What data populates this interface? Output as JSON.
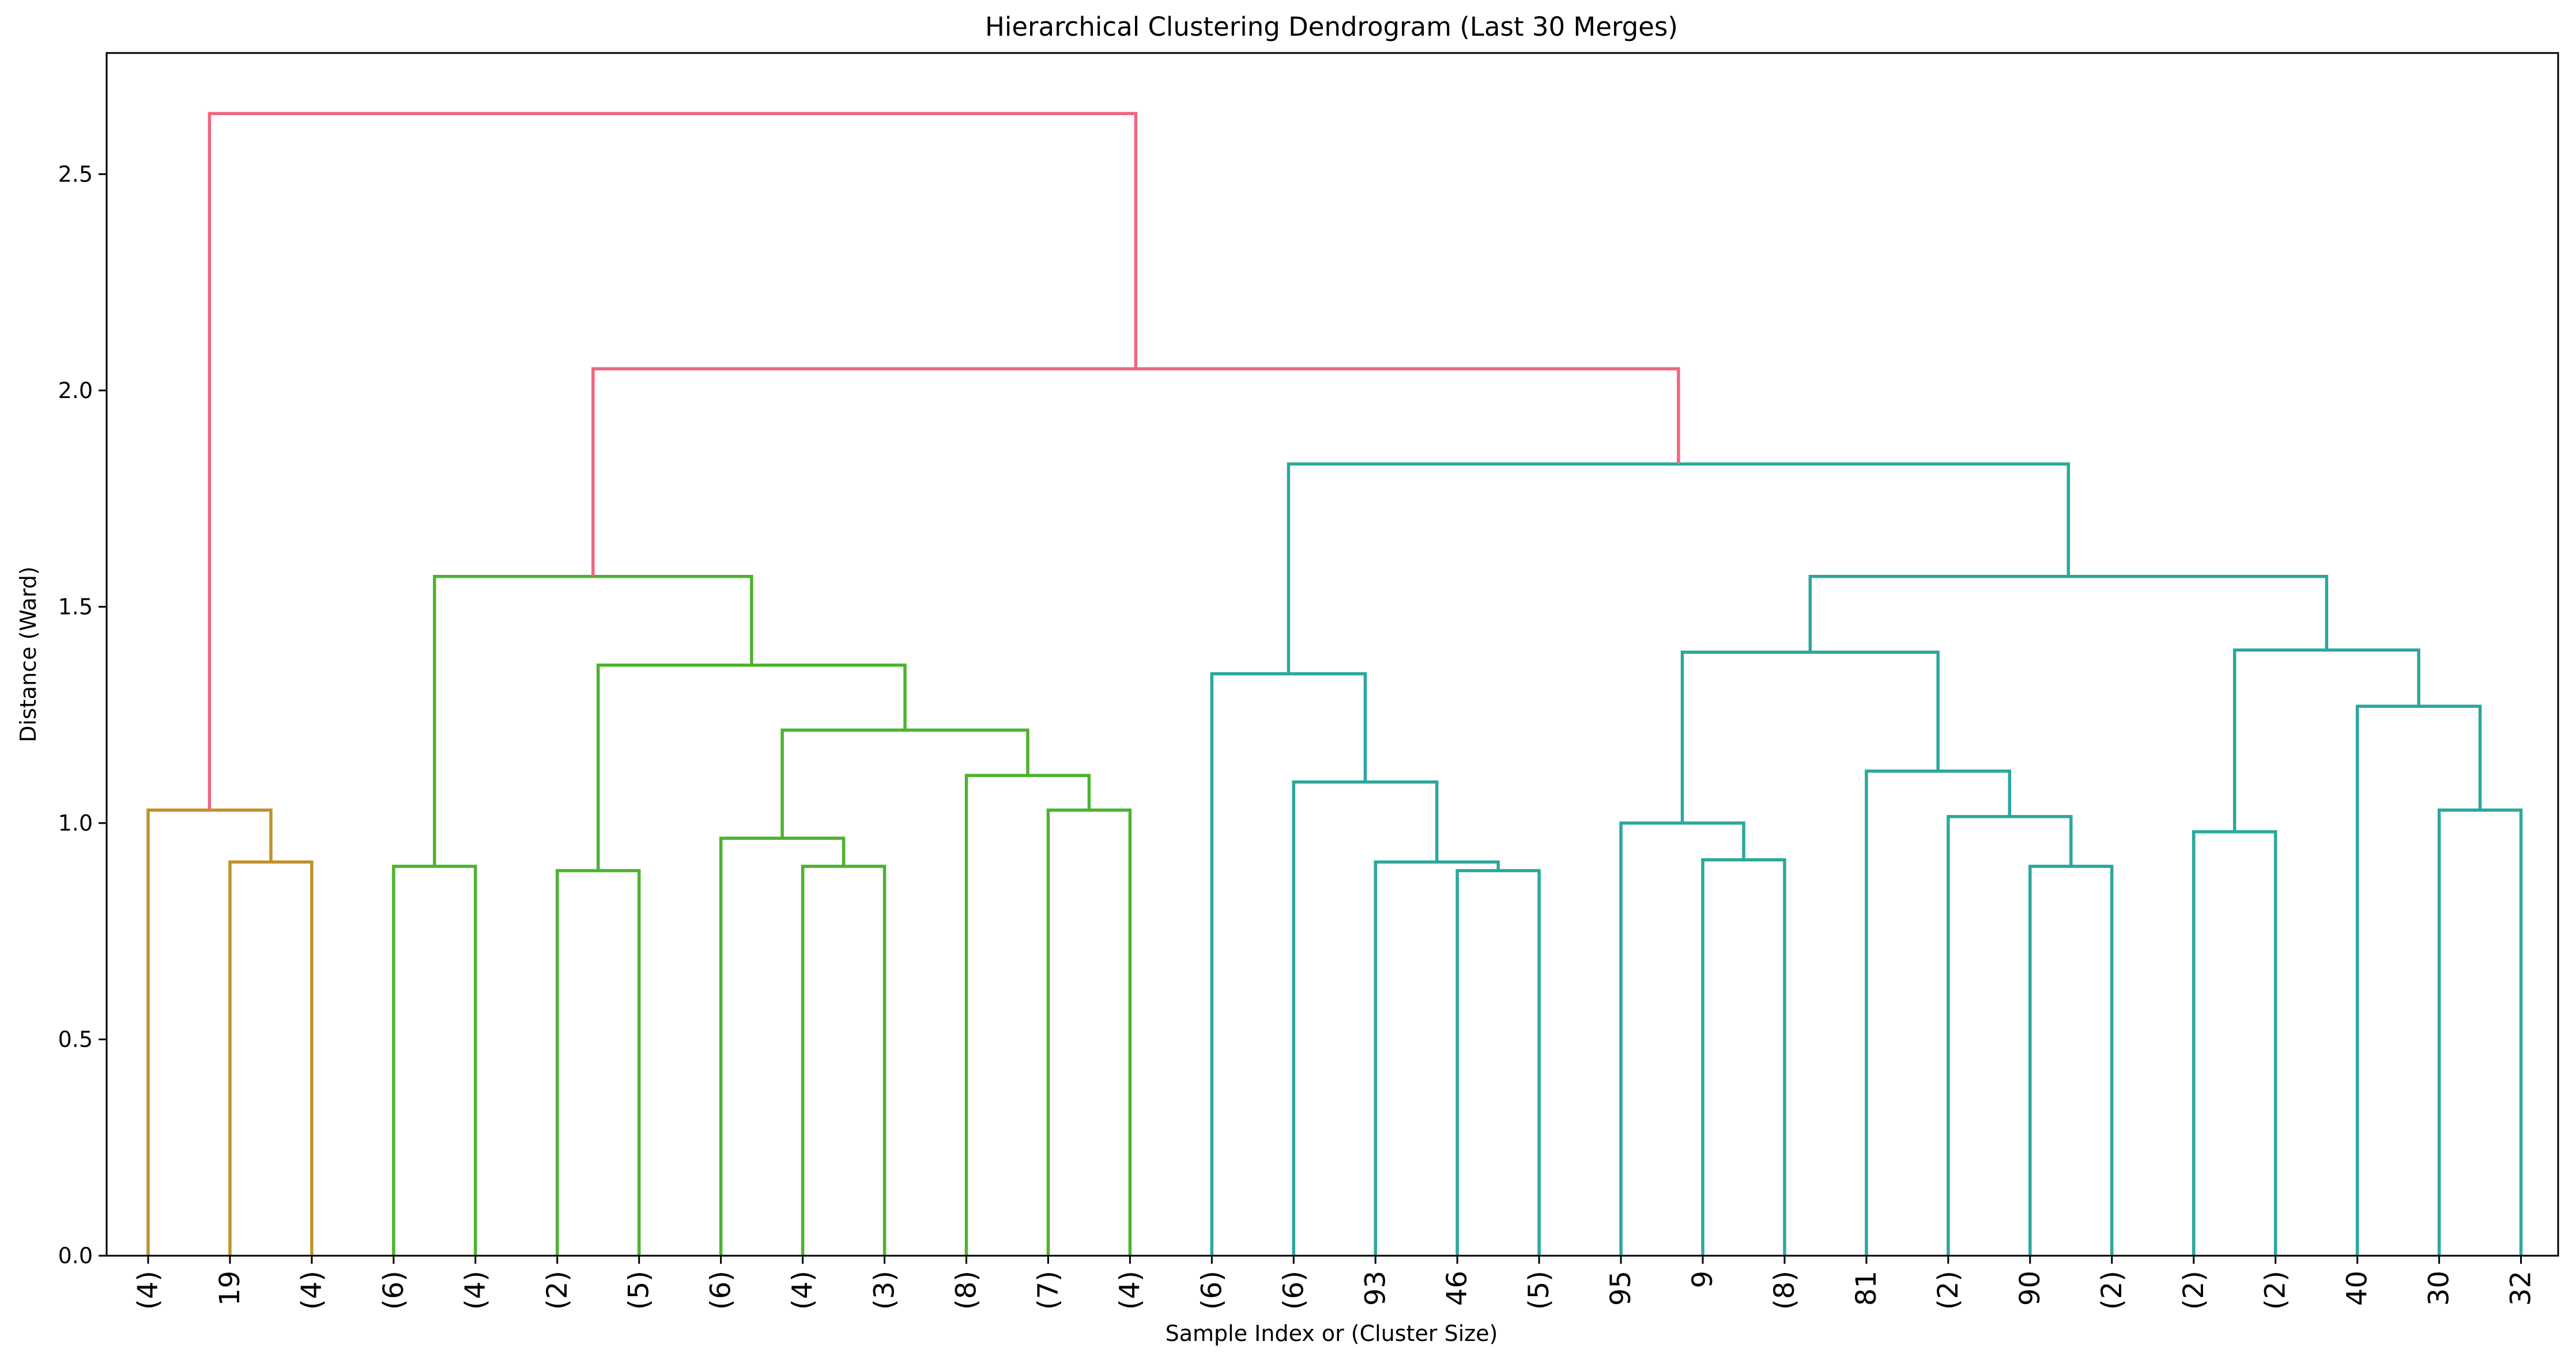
{
  "chart_data": {
    "type": "dendrogram",
    "title": "Hierarchical Clustering Dendrogram (Last 30 Merges)",
    "xlabel": "Sample Index or (Cluster Size)",
    "ylabel": "Distance (Ward)",
    "ylim": [
      0,
      2.78
    ],
    "yticks": [
      "0.0",
      "0.5",
      "1.0",
      "1.5",
      "2.0",
      "2.5"
    ],
    "grid": false,
    "leaves": [
      "(4)",
      "19",
      "(4)",
      "(6)",
      "(4)",
      "(2)",
      "(5)",
      "(6)",
      "(4)",
      "(3)",
      "(8)",
      "(7)",
      "(4)",
      "(6)",
      "(6)",
      "93",
      "46",
      "(5)",
      "95",
      "9",
      "(8)",
      "81",
      "(2)",
      "90",
      "(2)",
      "(2)",
      "(2)",
      "40",
      "30",
      "32"
    ],
    "colors": {
      "cluster_1": "#c0922a",
      "cluster_2": "#4cb32f",
      "cluster_3": "#2ba89d",
      "above_threshold": "#ee6680"
    },
    "merges": [
      {
        "left": "L1",
        "right": "L2",
        "height": 0.91,
        "color": "cluster_1"
      },
      {
        "left": "L0",
        "right": "M0",
        "height": 1.03,
        "color": "cluster_1"
      },
      {
        "left": "L3",
        "right": "L4",
        "height": 0.9,
        "color": "cluster_2"
      },
      {
        "left": "L5",
        "right": "L6",
        "height": 0.89,
        "color": "cluster_2"
      },
      {
        "left": "L8",
        "right": "L9",
        "height": 0.9,
        "color": "cluster_2"
      },
      {
        "left": "L7",
        "right": "M4",
        "height": 0.965,
        "color": "cluster_2"
      },
      {
        "left": "L11",
        "right": "L12",
        "height": 1.03,
        "color": "cluster_2"
      },
      {
        "left": "L10",
        "right": "M6",
        "height": 1.11,
        "color": "cluster_2"
      },
      {
        "left": "M5",
        "right": "M7",
        "height": 1.215,
        "color": "cluster_2"
      },
      {
        "left": "M3",
        "right": "M8",
        "height": 1.365,
        "color": "cluster_2"
      },
      {
        "left": "M2",
        "right": "M9",
        "height": 1.57,
        "color": "cluster_2"
      },
      {
        "left": "L16",
        "right": "L17",
        "height": 0.89,
        "color": "cluster_3"
      },
      {
        "left": "L15",
        "right": "M11",
        "height": 0.91,
        "color": "cluster_3"
      },
      {
        "left": "L14",
        "right": "M12",
        "height": 1.095,
        "color": "cluster_3"
      },
      {
        "left": "L13",
        "right": "M13",
        "height": 1.345,
        "color": "cluster_3"
      },
      {
        "left": "L19",
        "right": "L20",
        "height": 0.915,
        "color": "cluster_3"
      },
      {
        "left": "L18",
        "right": "M15",
        "height": 1.0,
        "color": "cluster_3"
      },
      {
        "left": "L23",
        "right": "L24",
        "height": 0.9,
        "color": "cluster_3"
      },
      {
        "left": "L22",
        "right": "M17",
        "height": 1.015,
        "color": "cluster_3"
      },
      {
        "left": "L21",
        "right": "M18",
        "height": 1.12,
        "color": "cluster_3"
      },
      {
        "left": "M16",
        "right": "M19",
        "height": 1.395,
        "color": "cluster_3"
      },
      {
        "left": "L25",
        "right": "L26",
        "height": 0.98,
        "color": "cluster_3"
      },
      {
        "left": "L28",
        "right": "L29",
        "height": 1.03,
        "color": "cluster_3"
      },
      {
        "left": "L27",
        "right": "M22",
        "height": 1.27,
        "color": "cluster_3"
      },
      {
        "left": "M21",
        "right": "M23",
        "height": 1.4,
        "color": "cluster_3"
      },
      {
        "left": "M20",
        "right": "M24",
        "height": 1.57,
        "color": "cluster_3"
      },
      {
        "left": "M14",
        "right": "M25",
        "height": 1.83,
        "color": "cluster_3"
      },
      {
        "left": "M10",
        "right": "M26",
        "height": 2.05,
        "color": "above_threshold"
      },
      {
        "left": "M1",
        "right": "M27",
        "height": 2.64,
        "color": "above_threshold"
      }
    ]
  }
}
